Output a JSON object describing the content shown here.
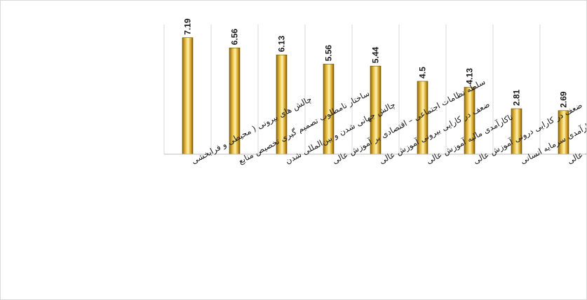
{
  "chart_data": {
    "type": "bar",
    "title": "",
    "xlabel": "",
    "ylabel": "",
    "ylim": [
      0,
      8
    ],
    "grid": {
      "vertical_category_lines": true,
      "horizontal": false
    },
    "legend": "none",
    "bar_color": "#d4a82a",
    "categories": [
      "چالش های بیرونی ( محیطی و فرابخشی",
      "ساختار نامطلوب تصمیم گیری تخصیص منابع",
      "چالش جهانی شدن و بین‌المللی شدن",
      "سلطه نظامات اجتماعی – اقتصادی بر آموزش عالی",
      "ضعف در کارایی بیرونی آموزش عالی",
      "ناکارآمدی مالیه آموزش عالی",
      "ضعف در کارایی درونی آموزش عالی",
      "ناکارآمدی سرمایه انسانی",
      "عدم کارایی اصول اقتصاد در نظام آموزش عالی"
    ],
    "values": [
      7.19,
      6.56,
      6.13,
      5.56,
      5.44,
      4.5,
      4.13,
      2.81,
      2.69
    ],
    "value_labels": [
      "7.19",
      "6.56",
      "6.13",
      "5.56",
      "5.44",
      "4.5",
      "4.13",
      "2.81",
      "2.69"
    ]
  }
}
